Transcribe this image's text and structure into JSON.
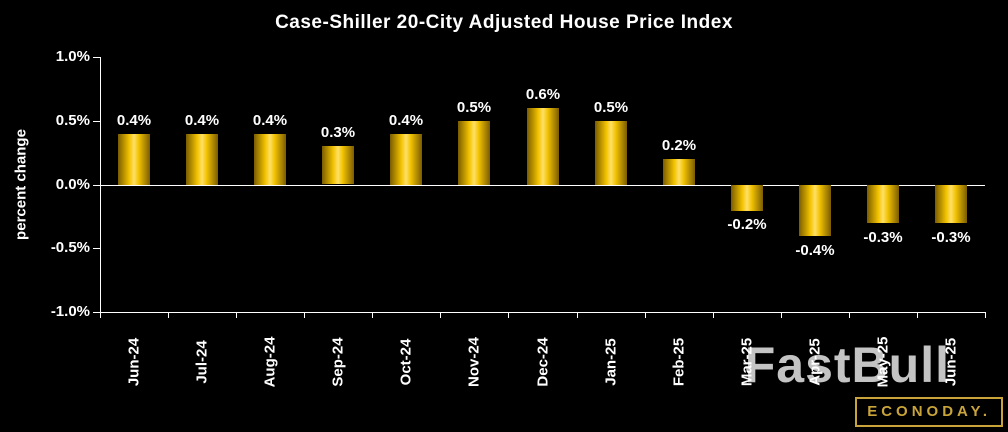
{
  "title": "Case-Shiller 20-City Adjusted House Price Index",
  "watermark": "FastBull",
  "logo_text": "ECONODAY.",
  "colors": {
    "background": "#000000",
    "bar_gold": "#f2c200",
    "bar_highlight": "#ffe066",
    "bar_shadow": "#7a5c00",
    "text": "#ffffff",
    "logo_gold": "#c9a43a",
    "watermark_gray": "#e6e6e6"
  },
  "chart_data": {
    "type": "bar",
    "title": "Case-Shiller 20-City Adjusted House Price Index",
    "xlabel": "",
    "ylabel": "percent change",
    "ylim": [
      -1.0,
      1.0
    ],
    "grid": "zero-line-only",
    "legend": "none",
    "categories": [
      "Jun-24",
      "Jul-24",
      "Aug-24",
      "Sep-24",
      "Oct-24",
      "Nov-24",
      "Dec-24",
      "Jan-25",
      "Feb-25",
      "Mar-25",
      "Apr-25",
      "May-25",
      "Jun-25"
    ],
    "values": [
      0.4,
      0.4,
      0.4,
      0.3,
      0.4,
      0.5,
      0.6,
      0.5,
      0.2,
      -0.2,
      -0.4,
      -0.3,
      -0.3
    ],
    "data_labels": [
      "0.4%",
      "0.4%",
      "0.4%",
      "0.3%",
      "0.4%",
      "0.5%",
      "0.6%",
      "0.5%",
      "0.2%",
      "-0.2%",
      "-0.4%",
      "-0.3%",
      "-0.3%"
    ],
    "yticks": [
      {
        "v": 1.0,
        "label": "1.0%"
      },
      {
        "v": 0.5,
        "label": "0.5%"
      },
      {
        "v": 0.0,
        "label": "0.0%"
      },
      {
        "v": -0.5,
        "label": "-0.5%"
      },
      {
        "v": -1.0,
        "label": "-1.0%"
      }
    ]
  }
}
